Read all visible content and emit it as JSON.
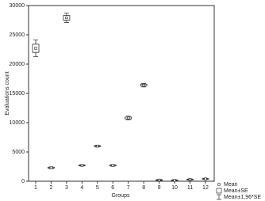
{
  "chart_data": {
    "type": "box-se",
    "x_label": "Groups",
    "y_label": "Evaluations count",
    "categories": [
      "1",
      "2",
      "3",
      "4",
      "5",
      "6",
      "7",
      "8",
      "9",
      "10",
      "11",
      "12"
    ],
    "series": [
      {
        "name": "Mean",
        "color": "#333333",
        "values": [
          22700,
          2300,
          27900,
          2700,
          6000,
          2700,
          10800,
          16400,
          200,
          150,
          300,
          400
        ]
      }
    ],
    "se": [
      700,
      80,
      400,
      60,
      80,
      80,
      150,
      150,
      50,
      50,
      50,
      50
    ],
    "ci": [
      1400,
      150,
      800,
      120,
      150,
      150,
      300,
      300,
      100,
      100,
      100,
      100
    ],
    "legend": [
      "Mean",
      "Mean±SE",
      "Mean±1,96*SE"
    ],
    "ylim": [
      0,
      30000
    ],
    "yticks": [
      0,
      5000,
      10000,
      15000,
      20000,
      25000,
      30000
    ]
  }
}
